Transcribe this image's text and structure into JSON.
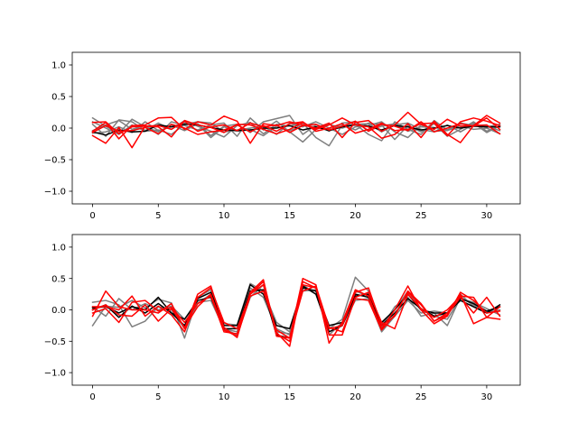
{
  "figure": {
    "background": "#ffffff"
  },
  "chart_data": [
    {
      "type": "line",
      "title": "",
      "xlabel": "",
      "ylabel": "",
      "xlim": [
        -1.55,
        32.55
      ],
      "ylim": [
        -1.2,
        1.2
      ],
      "xticks": [
        0,
        5,
        10,
        15,
        20,
        25,
        30
      ],
      "yticks": [
        -1.0,
        -0.5,
        0.0,
        0.5,
        1.0
      ],
      "ytick_labels": [
        "−1.0",
        "−0.5",
        "0.0",
        "0.5",
        "1.0"
      ],
      "grid": false,
      "legend": null,
      "x": [
        0,
        1,
        2,
        3,
        4,
        5,
        6,
        7,
        8,
        9,
        10,
        11,
        12,
        13,
        14,
        15,
        16,
        17,
        18,
        19,
        20,
        21,
        22,
        23,
        24,
        25,
        26,
        27,
        28,
        29,
        30,
        31
      ],
      "series": [
        {
          "group": "gray",
          "color": "#7f7f7f",
          "values": [
            0.16,
            0.03,
            -0.08,
            0.14,
            0.02,
            -0.06,
            0.05,
            -0.04,
            0.07,
            -0.12,
            0.03,
            0.06,
            -0.07,
            0.1,
            0.15,
            0.2,
            -0.1,
            0.05,
            -0.05,
            0.08,
            0.1,
            -0.04,
            0.03,
            0.07,
            -0.05,
            0.02,
            0.01,
            -0.03,
            0.08,
            0.04,
            0.02,
            0.06
          ]
        },
        {
          "group": "gray",
          "color": "#7f7f7f",
          "values": [
            0.06,
            -0.13,
            0.13,
            0.1,
            -0.04,
            0.08,
            -0.02,
            0.12,
            0.03,
            -0.05,
            -0.14,
            0.04,
            0.09,
            -0.09,
            0.06,
            0.03,
            0.08,
            -0.15,
            -0.28,
            0.05,
            -0.03,
            0.08,
            0.05,
            -0.18,
            0.04,
            -0.06,
            0.07,
            -0.13,
            -0.02,
            0.1,
            -0.05,
            0.03
          ]
        },
        {
          "group": "gray",
          "color": "#7f7f7f",
          "values": [
            -0.04,
            0.05,
            0.12,
            -0.02,
            0.04,
            -0.1,
            0.1,
            0.04,
            -0.03,
            0.05,
            0.08,
            -0.13,
            0.16,
            -0.03,
            0.11,
            -0.06,
            -0.22,
            -0.02,
            0.06,
            0.0,
            0.06,
            -0.1,
            -0.2,
            0.1,
            -0.02,
            -0.1,
            0.12,
            -0.03,
            0.01,
            0.08,
            -0.07,
            0.04
          ]
        },
        {
          "group": "gray",
          "color": "#7f7f7f",
          "values": [
            -0.08,
            -0.06,
            0.02,
            -0.07,
            0.1,
            -0.04,
            0.02,
            0.08,
            0.06,
            -0.15,
            0.02,
            -0.05,
            -0.02,
            -0.12,
            0.03,
            -0.04,
            0.04,
            0.02,
            -0.03,
            0.04,
            0.06,
            0.07,
            -0.06,
            0.05,
            0.08,
            -0.02,
            -0.06,
            0.05,
            -0.06,
            0.06,
            0.03,
            -0.04
          ]
        },
        {
          "group": "gray",
          "color": "#7f7f7f",
          "values": [
            0.1,
            0.0,
            -0.1,
            0.05,
            -0.05,
            -0.03,
            -0.1,
            0.06,
            0.1,
            0.08,
            -0.06,
            -0.03,
            0.0,
            0.03,
            -0.1,
            0.08,
            0.02,
            0.1,
            0.0,
            -0.1,
            0.02,
            0.04,
            0.1,
            -0.06,
            -0.15,
            0.05,
            -0.05,
            -0.04,
            0.04,
            -0.02,
            0.0,
            -0.09
          ]
        },
        {
          "group": "black",
          "color": "#000000",
          "values": [
            -0.06,
            -0.11,
            -0.03,
            -0.06,
            -0.05,
            0.05,
            0.02,
            0.06,
            0.05,
            0.01,
            -0.03,
            -0.04,
            -0.03,
            0.0,
            0.0,
            0.04,
            -0.03,
            0.02,
            -0.04,
            0.02,
            0.05,
            0.03,
            -0.03,
            0.04,
            0.02,
            -0.03,
            0.0,
            0.04,
            0.0,
            0.03,
            0.02,
            0.02
          ]
        },
        {
          "group": "red",
          "color": "#ff0000",
          "values": [
            -0.05,
            0.09,
            -0.17,
            0.04,
            0.05,
            0.16,
            0.17,
            -0.02,
            0.1,
            0.05,
            0.19,
            0.11,
            -0.24,
            0.07,
            0.04,
            0.1,
            0.05,
            0.0,
            0.08,
            -0.15,
            0.09,
            0.12,
            -0.05,
            0.05,
            0.25,
            0.06,
            -0.02,
            0.14,
            0.03,
            0.04,
            0.2,
            0.08
          ]
        },
        {
          "group": "red",
          "color": "#ff0000",
          "values": [
            -0.12,
            -0.24,
            0.01,
            -0.31,
            0.03,
            0.02,
            -0.14,
            0.12,
            0.05,
            0.01,
            -0.07,
            0.06,
            0.05,
            -0.02,
            -0.09,
            -0.02,
            0.09,
            -0.02,
            0.05,
            0.16,
            0.05,
            0.02,
            -0.16,
            -0.1,
            0.07,
            -0.15,
            0.11,
            -0.1,
            -0.23,
            0.04,
            0.05,
            -0.09
          ]
        },
        {
          "group": "red",
          "color": "#ff0000",
          "values": [
            0.09,
            0.1,
            -0.09,
            0.02,
            0.03,
            0.04,
            -0.02,
            0.11,
            -0.05,
            0.02,
            0.05,
            -0.04,
            0.08,
            0.02,
            0.05,
            -0.07,
            0.04,
            0.06,
            -0.03,
            0.03,
            0.11,
            -0.05,
            0.06,
            0.03,
            -0.04,
            0.1,
            -0.06,
            0.0,
            0.07,
            0.03,
            0.16,
            -0.02
          ]
        },
        {
          "group": "red",
          "color": "#ff0000",
          "values": [
            -0.07,
            0.04,
            -0.05,
            -0.04,
            0.01,
            -0.09,
            0.06,
            0.0,
            -0.1,
            -0.06,
            -0.03,
            0.05,
            -0.06,
            0.04,
            -0.05,
            0.07,
            0.1,
            -0.05,
            0.0,
            0.07,
            -0.08,
            -0.02,
            0.08,
            -0.04,
            -0.02,
            0.07,
            0.08,
            -0.12,
            0.1,
            0.16,
            0.11,
            0.04
          ]
        }
      ]
    },
    {
      "type": "line",
      "title": "",
      "xlabel": "",
      "ylabel": "",
      "xlim": [
        -1.55,
        32.55
      ],
      "ylim": [
        -1.2,
        1.2
      ],
      "xticks": [
        0,
        5,
        10,
        15,
        20,
        25,
        30
      ],
      "yticks": [
        -1.0,
        -0.5,
        0.0,
        0.5,
        1.0
      ],
      "ytick_labels": [
        "−1.0",
        "−0.5",
        "0.0",
        "0.5",
        "1.0"
      ],
      "grid": false,
      "legend": null,
      "x": [
        0,
        1,
        2,
        3,
        4,
        5,
        6,
        7,
        8,
        9,
        10,
        11,
        12,
        13,
        14,
        15,
        16,
        17,
        18,
        19,
        20,
        21,
        22,
        23,
        24,
        25,
        26,
        27,
        28,
        29,
        30,
        31
      ],
      "series": [
        {
          "group": "gray",
          "color": "#7f7f7f",
          "values": [
            -0.25,
            0.06,
            0.04,
            0.15,
            0.03,
            0.17,
            0.11,
            -0.45,
            0.2,
            0.32,
            -0.22,
            -0.24,
            0.42,
            0.3,
            -0.2,
            -0.35,
            0.4,
            0.25,
            -0.3,
            -0.15,
            0.52,
            0.3,
            -0.22,
            0.0,
            0.3,
            0.0,
            -0.1,
            -0.15,
            0.18,
            0.12,
            0.02,
            -0.08
          ]
        },
        {
          "group": "gray",
          "color": "#7f7f7f",
          "values": [
            0.12,
            0.15,
            0.08,
            -0.27,
            -0.18,
            0.05,
            0.0,
            -0.3,
            0.1,
            0.25,
            -0.3,
            -0.35,
            0.35,
            0.2,
            -0.3,
            -0.4,
            0.3,
            0.32,
            -0.35,
            -0.25,
            0.15,
            0.18,
            -0.35,
            -0.1,
            0.15,
            -0.05,
            -0.02,
            -0.05,
            0.25,
            0.05,
            -0.05,
            0.05
          ]
        },
        {
          "group": "gray",
          "color": "#7f7f7f",
          "values": [
            0.05,
            -0.1,
            0.18,
            0.0,
            0.1,
            0.0,
            0.06,
            -0.15,
            0.12,
            0.15,
            -0.3,
            -0.4,
            0.2,
            0.4,
            -0.35,
            -0.38,
            0.35,
            0.3,
            -0.4,
            -0.2,
            0.3,
            0.22,
            -0.28,
            0.05,
            0.2,
            -0.1,
            -0.05,
            -0.25,
            0.2,
            0.08,
            -0.05,
            0.0
          ]
        },
        {
          "group": "black",
          "color": "#000000",
          "values": [
            0.03,
            0.05,
            -0.05,
            0.05,
            0.0,
            0.2,
            -0.05,
            -0.25,
            0.18,
            0.28,
            -0.25,
            -0.25,
            0.4,
            0.25,
            -0.25,
            -0.3,
            0.35,
            0.3,
            -0.25,
            -0.2,
            0.25,
            0.2,
            -0.2,
            0.0,
            0.25,
            0.0,
            -0.05,
            -0.05,
            0.18,
            0.1,
            -0.02,
            0.05
          ]
        },
        {
          "group": "black",
          "color": "#000000",
          "values": [
            0.0,
            0.08,
            -0.12,
            0.06,
            -0.05,
            0.1,
            -0.05,
            -0.15,
            0.15,
            0.2,
            -0.3,
            -0.3,
            0.3,
            0.32,
            -0.4,
            -0.45,
            0.38,
            0.25,
            -0.35,
            -0.25,
            0.22,
            0.25,
            -0.25,
            -0.05,
            0.18,
            0.02,
            -0.1,
            -0.05,
            0.15,
            0.05,
            -0.05,
            0.08
          ]
        },
        {
          "group": "red",
          "color": "#ff0000",
          "values": [
            -0.1,
            0.3,
            0.05,
            0.0,
            0.0,
            -0.05,
            0.1,
            -0.3,
            0.25,
            0.38,
            -0.28,
            -0.44,
            0.28,
            0.48,
            -0.42,
            -0.45,
            0.5,
            0.4,
            -0.53,
            -0.2,
            0.32,
            0.22,
            -0.3,
            0.0,
            0.38,
            0.0,
            -0.22,
            -0.1,
            0.28,
            0.15,
            -0.05,
            -0.02
          ]
        },
        {
          "group": "red",
          "color": "#ff0000",
          "values": [
            0.05,
            0.05,
            0.0,
            0.22,
            -0.1,
            0.06,
            -0.08,
            -0.35,
            0.2,
            0.35,
            -0.2,
            -0.3,
            0.25,
            0.45,
            -0.36,
            -0.58,
            0.45,
            0.35,
            -0.4,
            -0.4,
            0.2,
            0.28,
            -0.2,
            -0.3,
            0.25,
            0.02,
            -0.12,
            0.0,
            0.22,
            0.2,
            -0.12,
            0.05
          ]
        },
        {
          "group": "red",
          "color": "#ff0000",
          "values": [
            -0.05,
            0.02,
            -0.2,
            0.12,
            0.15,
            -0.02,
            0.04,
            -0.2,
            0.1,
            0.22,
            -0.35,
            -0.38,
            0.25,
            0.4,
            -0.38,
            -0.5,
            0.4,
            0.35,
            -0.3,
            -0.25,
            0.28,
            0.35,
            -0.25,
            -0.1,
            0.3,
            0.1,
            -0.18,
            -0.05,
            0.25,
            -0.22,
            -0.12,
            -0.15
          ]
        },
        {
          "group": "red",
          "color": "#ff0000",
          "values": [
            0.0,
            0.08,
            -0.08,
            -0.1,
            0.08,
            -0.18,
            0.02,
            -0.28,
            0.05,
            0.25,
            -0.32,
            -0.42,
            0.22,
            0.3,
            -0.32,
            -0.45,
            0.3,
            0.38,
            -0.28,
            -0.35,
            0.18,
            0.15,
            -0.32,
            -0.08,
            0.28,
            0.08,
            -0.18,
            -0.08,
            0.2,
            -0.05,
            0.2,
            -0.1
          ]
        }
      ]
    }
  ]
}
